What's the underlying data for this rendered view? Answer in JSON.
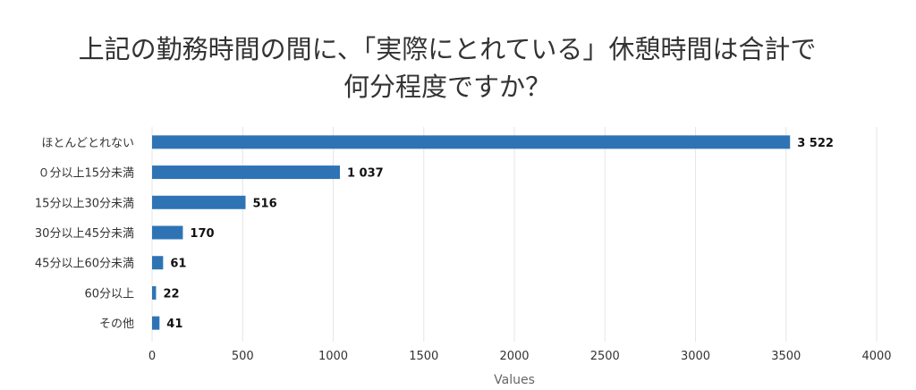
{
  "chart_data": {
    "type": "bar",
    "orientation": "horizontal",
    "title_lines": [
      "上記の勤務時間の間に、「実際にとれている」休憩時間は合計で",
      "何分程度ですか？"
    ],
    "categories": [
      "ほとんどとれない",
      "０分以上15分未満",
      "15分以上30分未満",
      "30分以上45分未満",
      "45分以上60分未満",
      "60分以上",
      "その他"
    ],
    "values": [
      3522,
      1037,
      516,
      170,
      61,
      22,
      41
    ],
    "value_labels": [
      "3 522",
      "1 037",
      "516",
      "170",
      "61",
      "22",
      "41"
    ],
    "xlabel": "Values",
    "xlim": [
      0,
      4000
    ],
    "xticks": [
      0,
      500,
      1000,
      1500,
      2000,
      2500,
      3000,
      3500,
      4000
    ],
    "grid": true,
    "legend": false,
    "colors": {
      "bar": "#2e74b5",
      "grid": "#e6e6e6"
    }
  }
}
